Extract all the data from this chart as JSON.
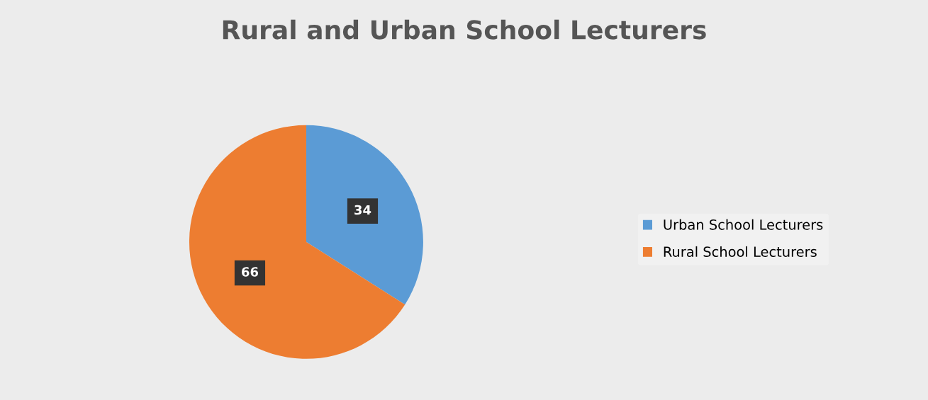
{
  "chart_data": {
    "type": "pie",
    "title": "Rural and Urban School Lecturers",
    "categories": [
      "Urban School Lecturers",
      "Rural School Lecturers"
    ],
    "values": [
      34,
      66
    ],
    "colors": [
      "#5b9bd5",
      "#ed7d31"
    ],
    "data_labels": true,
    "legend": "right"
  }
}
